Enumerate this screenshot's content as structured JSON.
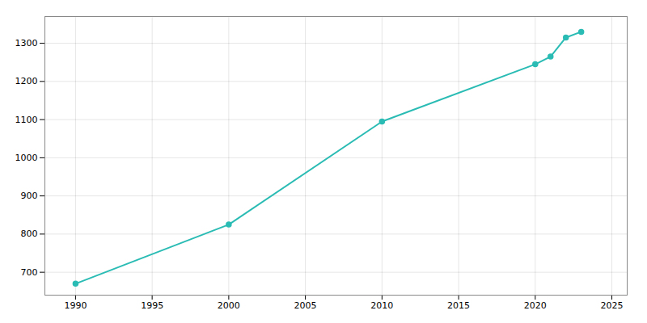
{
  "chart_data": {
    "type": "line",
    "x": [
      1990,
      2000,
      2010,
      2020,
      2021,
      2022,
      2023
    ],
    "values": [
      670,
      825,
      1095,
      1245,
      1265,
      1315,
      1330
    ],
    "color": "#2abcb4",
    "marker": "circle",
    "xlim": [
      1988,
      2026
    ],
    "ylim": [
      640,
      1370
    ],
    "xticks": [
      1990,
      1995,
      2000,
      2005,
      2010,
      2015,
      2020,
      2025
    ],
    "yticks": [
      700,
      800,
      900,
      1000,
      1100,
      1200,
      1300
    ],
    "grid": true
  }
}
